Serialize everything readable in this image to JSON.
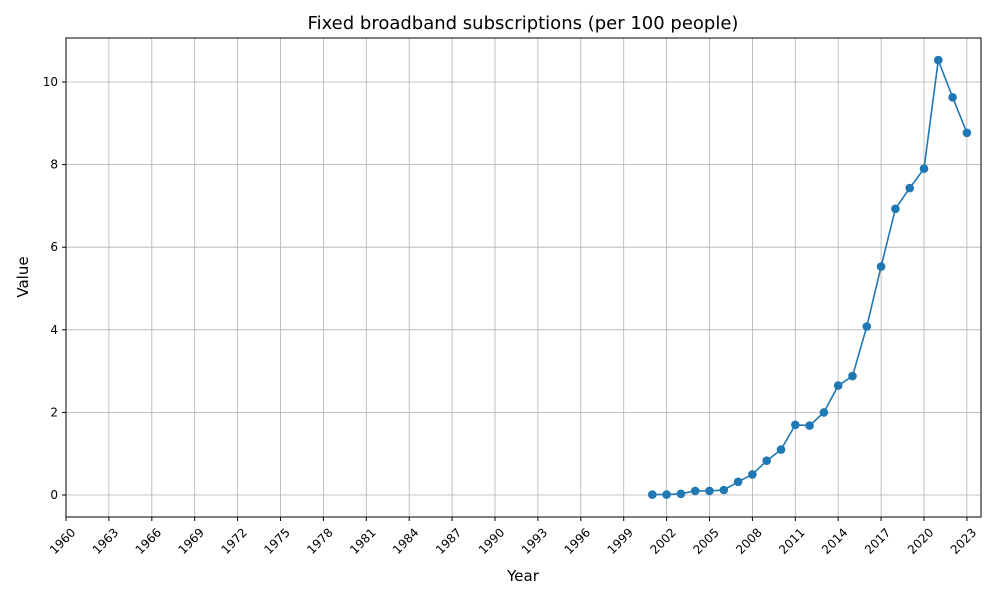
{
  "chart_data": {
    "type": "line",
    "title": "Fixed broadband subscriptions (per 100 people)",
    "xlabel": "Year",
    "ylabel": "Value",
    "xlim": [
      1960,
      2023
    ],
    "ylim": [
      -0.5,
      11.05
    ],
    "grid": true,
    "legend": "none",
    "x_ticks": [
      1960,
      1963,
      1966,
      1969,
      1972,
      1975,
      1978,
      1981,
      1984,
      1987,
      1990,
      1993,
      1996,
      1999,
      2002,
      2005,
      2008,
      2011,
      2014,
      2017,
      2020,
      2023
    ],
    "y_ticks": [
      0,
      2,
      4,
      6,
      8,
      10
    ],
    "series": [
      {
        "color": "#1f77b4",
        "marker": "circle",
        "x": [
          2001,
          2002,
          2003,
          2004,
          2005,
          2006,
          2007,
          2008,
          2009,
          2010,
          2011,
          2012,
          2013,
          2014,
          2015,
          2016,
          2017,
          2018,
          2019,
          2020,
          2021,
          2022,
          2023
        ],
        "values": [
          0.01,
          0.01,
          0.03,
          0.1,
          0.1,
          0.12,
          0.32,
          0.5,
          0.83,
          1.1,
          1.7,
          1.68,
          2.0,
          2.65,
          2.88,
          4.08,
          5.53,
          6.93,
          7.43,
          7.9,
          10.53,
          9.63,
          8.77
        ]
      }
    ]
  }
}
